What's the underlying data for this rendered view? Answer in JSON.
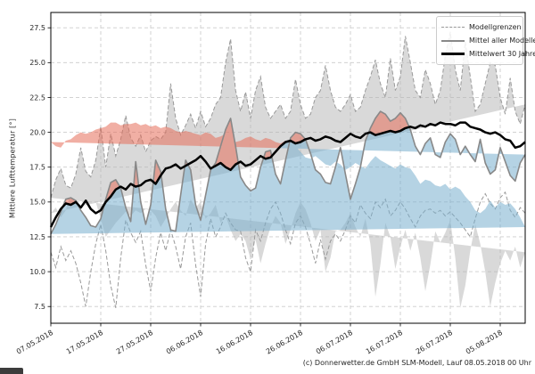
{
  "caption": "(c) Donnerwetter.de GmbH SLM-Modell, Lauf 08.05.2018 00 Uhr",
  "colors": {
    "band_fill": "rgba(180,180,180,0.5)",
    "band_edge": "#999999",
    "above_fill": "rgba(230,110,90,0.55)",
    "below_fill": "rgba(120,175,205,0.55)",
    "model_mean_line": "#888888",
    "mean30_line": "#000000",
    "grid": "#cccccc",
    "spine": "#000000",
    "tick_text": "#262626"
  },
  "legend": {
    "entries": [
      {
        "label": "Modellgrenzen",
        "style": "dashed-gray"
      },
      {
        "label": "Mittel aller Modelle",
        "style": "solid-gray"
      },
      {
        "label": "Mittelwert 30 Jahre",
        "style": "solid-black"
      }
    ],
    "position": "upper right"
  },
  "chart_data": {
    "type": "line",
    "title": "",
    "xlabel": "",
    "ylabel": "Mittlere Lufttemperatur [°]",
    "grid": true,
    "ylim": [
      6.3,
      28.6
    ],
    "xlim": [
      0,
      95
    ],
    "yticks": [
      "7.5",
      "10.0",
      "12.5",
      "15.0",
      "17.5",
      "20.0",
      "22.5",
      "25.0",
      "27.5"
    ],
    "ytick_values": [
      7.5,
      10.0,
      12.5,
      15.0,
      17.5,
      20.0,
      22.5,
      25.0,
      27.5
    ],
    "xtick_positions": [
      0,
      10,
      20,
      30,
      40,
      50,
      60,
      70,
      80,
      90
    ],
    "xtick_labels": [
      "07.05.2018",
      "17.05.2018",
      "27.05.2018",
      "06.06.2018",
      "16.06.2018",
      "26.06.2018",
      "06.07.2018",
      "16.07.2018",
      "26.07.2018",
      "05.08.2018"
    ],
    "x_unit": "day index from 07.05.2018, daily resolution",
    "series": [
      {
        "name": "Modellgrenzen (oben)",
        "role": "upper_bound",
        "values": [
          15.3,
          16.6,
          17.4,
          16.2,
          16.0,
          17.0,
          18.9,
          17.2,
          16.8,
          18.0,
          20.4,
          17.5,
          19.9,
          18.3,
          19.5,
          21.2,
          19.6,
          19.0,
          19.8,
          18.6,
          19.4,
          19.7,
          19.5,
          20.0,
          23.5,
          21.0,
          19.8,
          20.5,
          21.3,
          20.3,
          21.5,
          20.4,
          21.0,
          22.0,
          22.5,
          25.0,
          26.7,
          23.0,
          21.5,
          22.9,
          21.0,
          23.0,
          24.0,
          21.8,
          21.0,
          21.5,
          22.0,
          21.0,
          21.5,
          23.8,
          22.0,
          21.0,
          21.3,
          22.5,
          23.0,
          24.8,
          23.0,
          21.8,
          21.5,
          22.0,
          22.7,
          21.5,
          21.8,
          23.0,
          24.0,
          25.2,
          23.5,
          22.5,
          25.3,
          23.0,
          24.0,
          26.9,
          25.0,
          23.0,
          22.5,
          24.5,
          23.5,
          22.0,
          23.0,
          25.5,
          27.2,
          24.5,
          23.0,
          26.5,
          24.0,
          21.5,
          22.0,
          23.5,
          25.0,
          24.8,
          22.5,
          21.3,
          23.9,
          21.5,
          20.6,
          22.0
        ]
      },
      {
        "name": "Modellgrenzen (unten)",
        "role": "lower_bound",
        "values": [
          11.4,
          10.3,
          11.8,
          10.8,
          11.5,
          10.6,
          9.2,
          7.5,
          10.0,
          12.0,
          13.4,
          11.5,
          9.0,
          7.4,
          11.0,
          13.7,
          12.8,
          12.1,
          12.9,
          10.5,
          8.6,
          11.0,
          12.8,
          11.5,
          13.0,
          11.8,
          10.2,
          12.5,
          13.5,
          10.5,
          8.2,
          12.0,
          13.8,
          12.5,
          13.2,
          14.2,
          13.5,
          13.0,
          12.9,
          11.0,
          10.0,
          13.0,
          12.2,
          13.5,
          14.5,
          15.0,
          14.2,
          13.0,
          12.0,
          13.5,
          14.0,
          13.2,
          12.0,
          10.6,
          12.3,
          10.9,
          12.2,
          12.7,
          12.2,
          13.0,
          14.0,
          13.5,
          14.8,
          14.2,
          13.8,
          15.0,
          14.6,
          15.2,
          14.0,
          14.4,
          15.0,
          14.5,
          13.8,
          13.2,
          14.0,
          14.4,
          14.5,
          14.2,
          14.4,
          14.0,
          14.3,
          13.9,
          13.5,
          13.0,
          12.5,
          13.8,
          15.0,
          15.6,
          14.9,
          14.5,
          15.3,
          15.7,
          14.4,
          13.9,
          14.6,
          14.2
        ]
      },
      {
        "name": "Mittel aller Modelle",
        "role": "model_mean",
        "values": [
          12.7,
          13.4,
          14.3,
          15.2,
          15.3,
          15.1,
          14.4,
          13.9,
          13.3,
          13.2,
          13.8,
          15.2,
          16.4,
          16.6,
          16.0,
          14.6,
          13.6,
          17.9,
          15.0,
          13.4,
          14.8,
          18.0,
          17.2,
          14.5,
          13.0,
          12.9,
          15.5,
          18.0,
          17.3,
          14.8,
          13.7,
          15.5,
          17.3,
          17.8,
          19.0,
          20.2,
          21.0,
          19.0,
          16.8,
          16.2,
          15.8,
          16.0,
          17.5,
          18.6,
          18.7,
          17.0,
          16.3,
          18.0,
          19.6,
          20.0,
          19.9,
          19.5,
          18.5,
          17.3,
          17.0,
          16.4,
          16.3,
          17.5,
          18.9,
          17.0,
          15.2,
          16.3,
          17.5,
          19.4,
          20.3,
          21.0,
          21.5,
          21.3,
          20.8,
          21.0,
          21.4,
          21.0,
          20.2,
          19.0,
          18.4,
          19.2,
          19.6,
          18.4,
          18.2,
          19.3,
          19.9,
          19.5,
          18.4,
          19.0,
          18.4,
          17.9,
          19.5,
          17.8,
          17.0,
          17.3,
          18.9,
          17.9,
          16.9,
          16.5,
          17.8,
          18.4
        ]
      },
      {
        "name": "Mittelwert 30 Jahre",
        "role": "mean30",
        "values": [
          13.2,
          13.9,
          14.5,
          14.9,
          14.8,
          15.0,
          14.6,
          15.1,
          14.5,
          14.2,
          14.4,
          15.0,
          15.4,
          15.9,
          16.1,
          15.9,
          16.3,
          16.1,
          16.2,
          16.5,
          16.6,
          16.3,
          16.9,
          17.4,
          17.5,
          17.7,
          17.4,
          17.6,
          17.8,
          18.0,
          18.3,
          17.9,
          17.4,
          17.6,
          17.8,
          17.5,
          17.3,
          17.7,
          17.9,
          17.6,
          17.7,
          18.0,
          18.3,
          18.1,
          18.2,
          18.6,
          19.0,
          19.3,
          19.4,
          19.2,
          19.3,
          19.5,
          19.6,
          19.4,
          19.5,
          19.7,
          19.6,
          19.4,
          19.3,
          19.6,
          19.9,
          19.7,
          19.6,
          19.9,
          20.0,
          19.8,
          19.9,
          20.0,
          20.1,
          20.0,
          20.1,
          20.3,
          20.4,
          20.3,
          20.5,
          20.4,
          20.6,
          20.5,
          20.7,
          20.6,
          20.6,
          20.5,
          20.7,
          20.7,
          20.4,
          20.3,
          20.2,
          20.0,
          19.9,
          20.0,
          19.8,
          19.5,
          19.4,
          18.9,
          19.0,
          19.3
        ]
      }
    ]
  }
}
